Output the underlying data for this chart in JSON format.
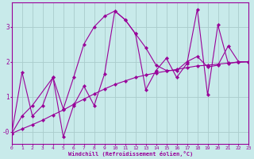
{
  "xlabel": "Windchill (Refroidissement éolien,°C)",
  "bg_color": "#c8eaea",
  "line_color": "#990099",
  "grid_color": "#aacccc",
  "series1_x": [
    0,
    1,
    2,
    3,
    4,
    5,
    6,
    7,
    8,
    9,
    10,
    11,
    12,
    13,
    14,
    15,
    16,
    17,
    18,
    19,
    20,
    21,
    22,
    23
  ],
  "series1_y": [
    -0.05,
    1.7,
    0.45,
    0.75,
    1.55,
    -0.15,
    0.75,
    1.3,
    0.75,
    1.65,
    3.45,
    3.2,
    2.8,
    1.2,
    1.75,
    2.1,
    1.55,
    1.95,
    3.5,
    1.05,
    3.05,
    1.95,
    2.0,
    2.0
  ],
  "series2_x": [
    0,
    1,
    2,
    4,
    5,
    6,
    7,
    8,
    9,
    10,
    11,
    12,
    13,
    14,
    15,
    16,
    17,
    18,
    19,
    20,
    21,
    22,
    23
  ],
  "series2_y": [
    -0.05,
    0.45,
    0.75,
    1.55,
    0.65,
    1.55,
    2.5,
    3.0,
    3.3,
    3.45,
    3.2,
    2.8,
    2.4,
    1.9,
    1.75,
    1.75,
    2.0,
    2.15,
    1.85,
    1.9,
    2.45,
    2.0,
    2.0
  ],
  "series3_x": [
    0,
    1,
    2,
    3,
    4,
    5,
    6,
    7,
    8,
    9,
    10,
    11,
    12,
    13,
    14,
    15,
    16,
    17,
    18,
    19,
    20,
    21,
    22,
    23
  ],
  "series3_y": [
    -0.05,
    0.08,
    0.2,
    0.33,
    0.48,
    0.62,
    0.78,
    0.93,
    1.08,
    1.22,
    1.35,
    1.45,
    1.55,
    1.62,
    1.68,
    1.73,
    1.78,
    1.83,
    1.88,
    1.9,
    1.93,
    1.96,
    1.98,
    2.0
  ],
  "xlim": [
    0,
    23
  ],
  "ylim": [
    -0.35,
    3.7
  ],
  "yticks": [
    0,
    1,
    2,
    3
  ],
  "ytick_labels": [
    "-0",
    "1",
    "2",
    "3"
  ],
  "xticks": [
    0,
    1,
    2,
    3,
    4,
    5,
    6,
    7,
    8,
    9,
    10,
    11,
    12,
    13,
    14,
    15,
    16,
    17,
    18,
    19,
    20,
    21,
    22,
    23
  ],
  "xlabel_fontsize": 5.0,
  "tick_fontsize": 4.5
}
